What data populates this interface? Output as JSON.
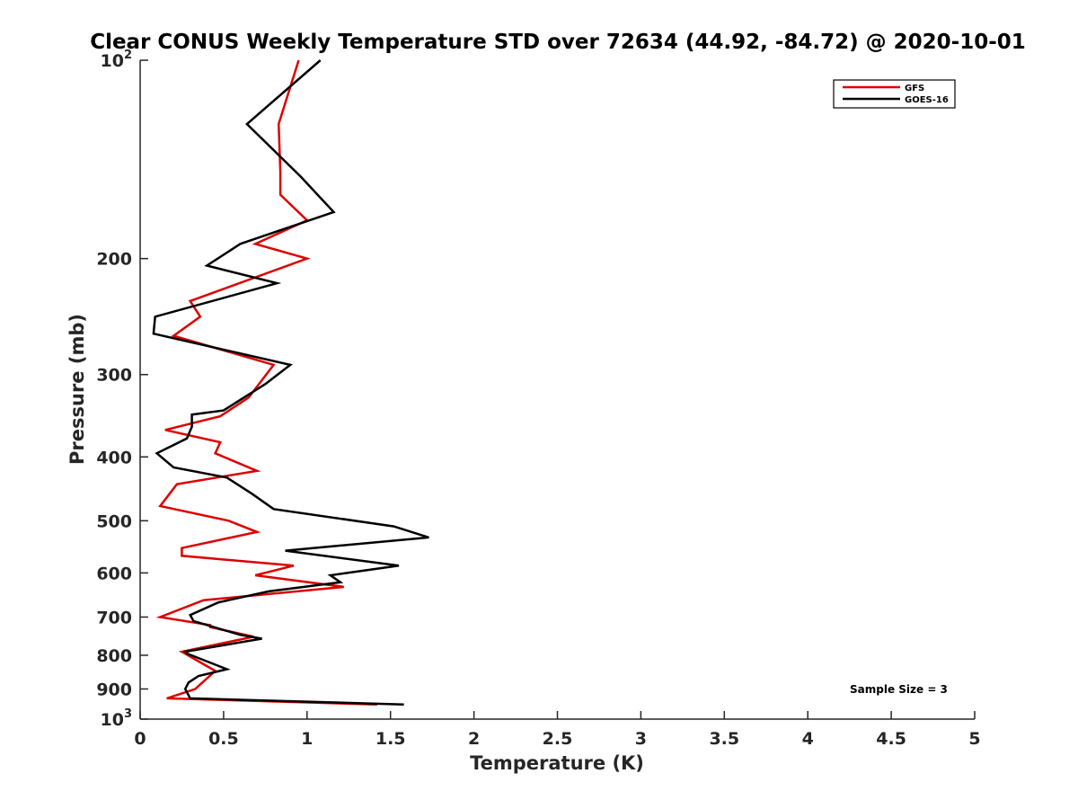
{
  "chart_data": {
    "type": "line",
    "title": "Clear CONUS Weekly Temperature STD over 72634 (44.92, -84.72) @ 2020-10-01",
    "xlabel": "Temperature (K)",
    "ylabel": "Pressure (mb)",
    "xlim": [
      0,
      5
    ],
    "ylim": [
      100,
      1000
    ],
    "y_scale": "log",
    "y_reversed": true,
    "grid": false,
    "legend_position": "top-right",
    "x_ticks": [
      0,
      0.5,
      1,
      1.5,
      2,
      2.5,
      3,
      3.5,
      4,
      4.5,
      5
    ],
    "x_tick_labels": [
      "0",
      "0.5",
      "1",
      "1.5",
      "2",
      "2.5",
      "3",
      "3.5",
      "4",
      "4.5",
      "5"
    ],
    "y_ticks": [
      200,
      300,
      400,
      500,
      600,
      700,
      800,
      900
    ],
    "y_tick_labels": [
      "200",
      "300",
      "400",
      "500",
      "600",
      "700",
      "800",
      "900"
    ],
    "y_end_labels": [
      {
        "value": 100,
        "base": "10",
        "exp": "2"
      },
      {
        "value": 1000,
        "base": "10",
        "exp": "3"
      }
    ],
    "annotation": "Sample Size = 3",
    "series": [
      {
        "name": "GFS",
        "color": "#dd0000",
        "x": [
          0.95,
          0.83,
          0.84,
          0.84,
          1.0,
          0.69,
          1.0,
          0.3,
          0.36,
          0.2,
          0.8,
          0.65,
          0.48,
          0.15,
          0.48,
          0.45,
          0.7,
          0.22,
          0.12,
          0.53,
          0.7,
          0.25,
          0.25,
          0.92,
          0.69,
          1.22,
          0.38,
          0.12,
          0.42,
          0.42,
          0.68,
          0.25,
          0.45,
          0.33,
          0.16,
          1.42
        ],
        "pressure": [
          100,
          125,
          148,
          160,
          175,
          190,
          200,
          232,
          245,
          262,
          290,
          325,
          347,
          364,
          380,
          395,
          420,
          440,
          475,
          500,
          520,
          550,
          565,
          585,
          605,
          630,
          660,
          700,
          720,
          725,
          750,
          790,
          845,
          900,
          930,
          950
        ]
      },
      {
        "name": "GOES-16",
        "color": "#000000",
        "x": [
          1.08,
          0.64,
          0.96,
          1.16,
          0.6,
          0.4,
          0.82,
          0.09,
          0.08,
          0.9,
          0.75,
          0.5,
          0.31,
          0.31,
          0.28,
          0.1,
          0.2,
          0.52,
          0.67,
          0.8,
          1.52,
          1.73,
          0.87,
          1.55,
          1.14,
          1.2,
          0.77,
          0.47,
          0.3,
          0.32,
          0.6,
          0.73,
          0.27,
          0.28,
          0.52,
          0.35,
          0.29,
          0.27,
          0.3,
          1.58
        ],
        "pressure": [
          100,
          125,
          150,
          170,
          190,
          205,
          218,
          245,
          260,
          290,
          310,
          340,
          345,
          360,
          375,
          395,
          415,
          430,
          455,
          480,
          510,
          530,
          555,
          585,
          605,
          620,
          640,
          665,
          695,
          710,
          745,
          755,
          790,
          795,
          840,
          860,
          880,
          900,
          930,
          950
        ]
      }
    ]
  }
}
